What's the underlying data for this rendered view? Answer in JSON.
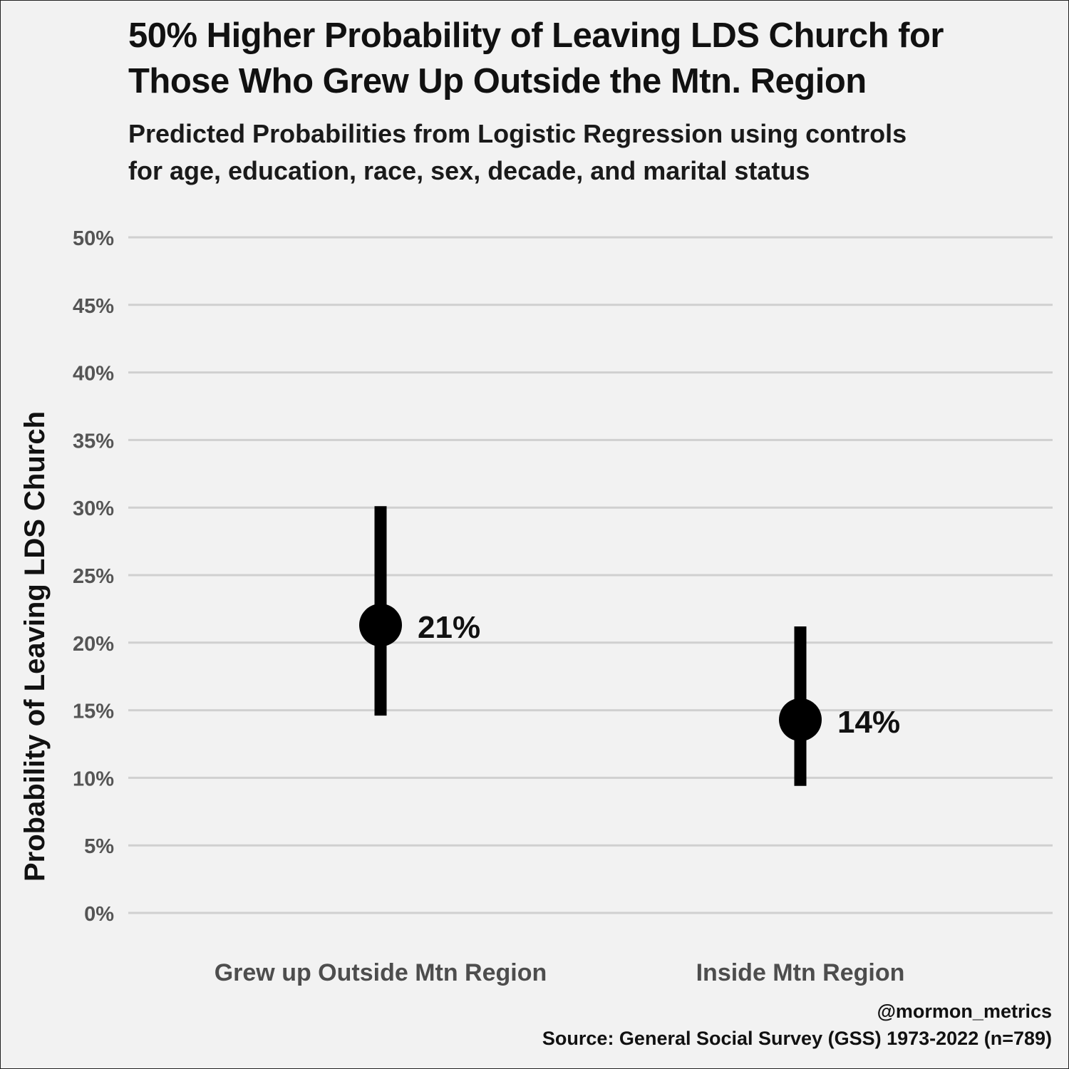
{
  "chart_data": {
    "type": "pointrange",
    "title": "50% Higher Probability of Leaving LDS Church for Those Who Grew Up Outside the Mtn. Region",
    "title_lines": [
      "50% Higher Probability of Leaving LDS Church for",
      "Those Who Grew Up Outside the Mtn. Region"
    ],
    "subtitle": "Predicted Probabilities from Logistic Regression using controls\n for age, education, race, sex, decade, and marital status",
    "xlabel": "",
    "ylabel": "Probability of Leaving LDS Church",
    "ylim": [
      0,
      50
    ],
    "yticks": [
      0,
      5,
      10,
      15,
      20,
      25,
      30,
      35,
      40,
      45,
      50
    ],
    "ytick_labels": [
      "0%",
      "5%",
      "10%",
      "15%",
      "20%",
      "25%",
      "30%",
      "35%",
      "40%",
      "45%",
      "50%"
    ],
    "grid": true,
    "categories": [
      "Grew up Outside Mtn Region",
      "Inside Mtn Region"
    ],
    "points": [
      {
        "category": "Grew up Outside Mtn Region",
        "estimate": 21.3,
        "lower": 14.6,
        "upper": 30.1,
        "label": "21%"
      },
      {
        "category": "Inside Mtn Region",
        "estimate": 14.3,
        "lower": 9.4,
        "upper": 21.2,
        "label": "14%"
      }
    ],
    "caption": [
      "@mormon_metrics",
      "Source: General Social Survey (GSS) 1973-2022 (n=789)"
    ],
    "colors": {
      "background": "#f2f2f2",
      "grid": "#d0d0d0",
      "point": "#000000",
      "tick_text": "#555555"
    }
  }
}
